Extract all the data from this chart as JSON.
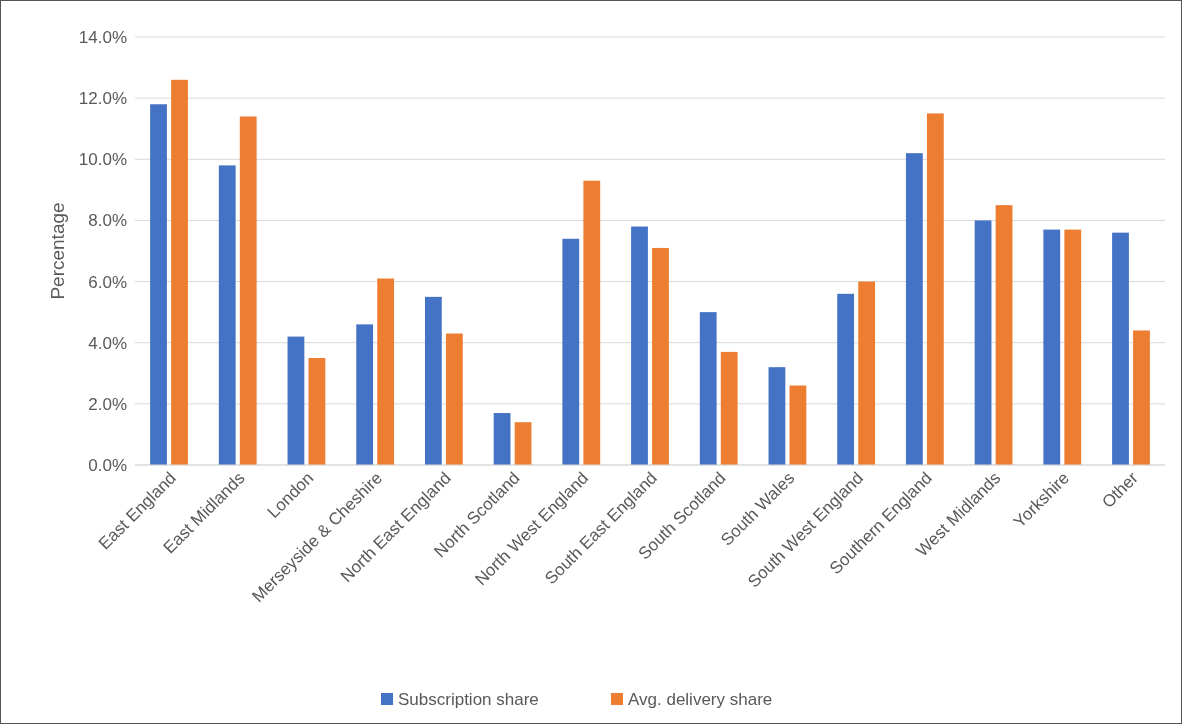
{
  "chart_data": {
    "type": "bar",
    "ylabel": "Percentage",
    "categories": [
      "East England",
      "East Midlands",
      "London",
      "Merseyside & Cheshire",
      "North East England",
      "North Scotland",
      "North West England",
      "South East England",
      "South Scotland",
      "South Wales",
      "South West England",
      "Southern England",
      "West Midlands",
      "Yorkshire",
      "Other"
    ],
    "series": [
      {
        "name": "Subscription share",
        "color": "#4472c4",
        "values": [
          11.8,
          9.8,
          4.2,
          4.6,
          5.5,
          1.7,
          7.4,
          7.8,
          5.0,
          3.2,
          5.6,
          10.2,
          8.0,
          7.7,
          7.6
        ]
      },
      {
        "name": "Avg. delivery share",
        "color": "#ed7d31",
        "values": [
          12.6,
          11.4,
          3.5,
          6.1,
          4.3,
          1.4,
          9.3,
          7.1,
          3.7,
          2.6,
          6.0,
          11.5,
          8.5,
          7.7,
          4.4
        ]
      }
    ],
    "ylim": [
      0,
      14
    ],
    "yticks": [
      {
        "value": 0,
        "label": "0.0%"
      },
      {
        "value": 2,
        "label": "2.0%"
      },
      {
        "value": 4,
        "label": "4.0%"
      },
      {
        "value": 6,
        "label": "6.0%"
      },
      {
        "value": 8,
        "label": "8.0%"
      },
      {
        "value": 10,
        "label": "10.0%"
      },
      {
        "value": 12,
        "label": "12.0%"
      },
      {
        "value": 14,
        "label": "14.0%"
      }
    ],
    "grid": "y",
    "legend": "bottom"
  }
}
